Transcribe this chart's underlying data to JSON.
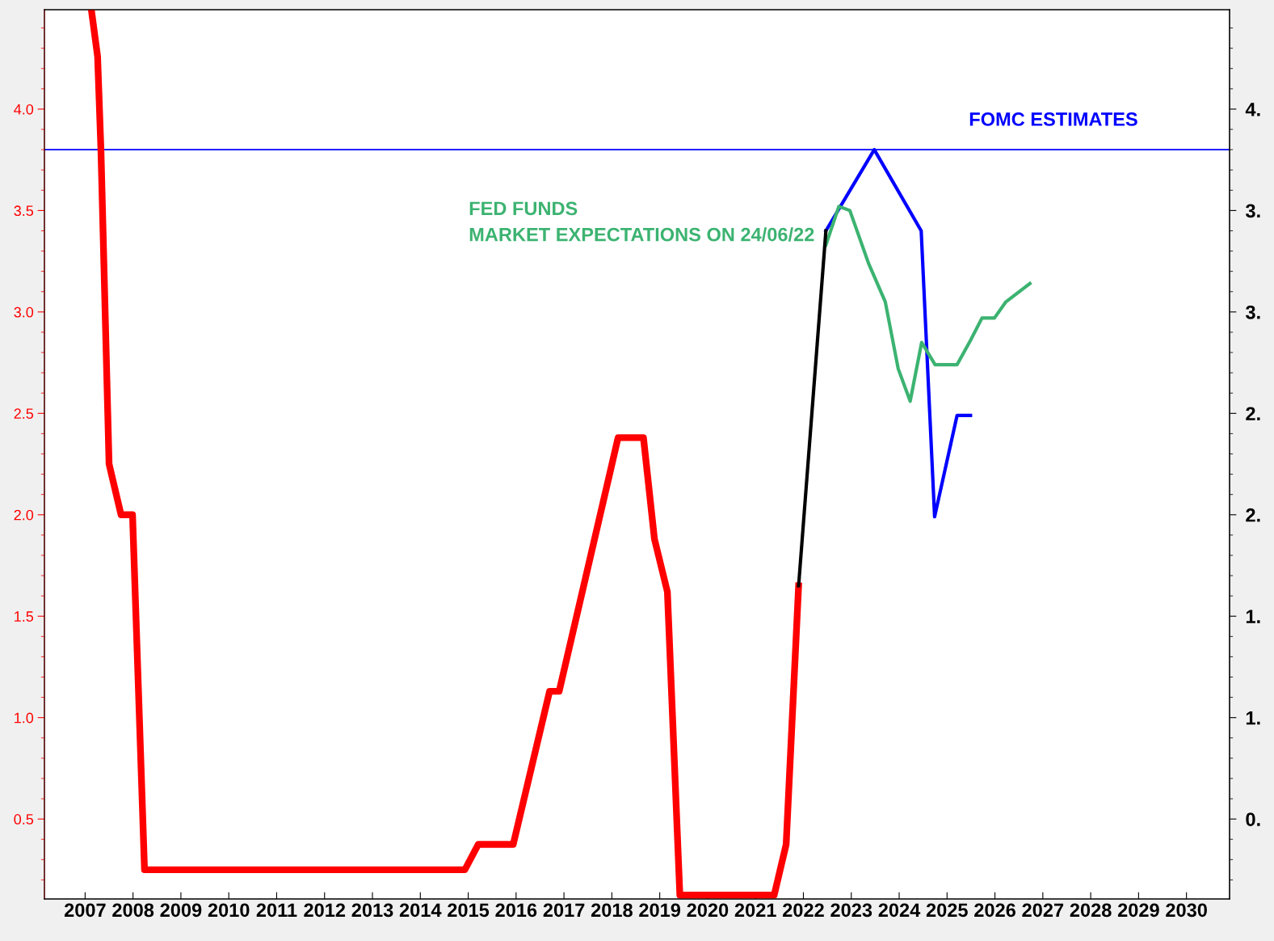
{
  "chart_data": {
    "type": "line",
    "grid": false,
    "legend": false,
    "marker": "none",
    "line_style": "solid",
    "xlim": [
      2006.65,
      2031.4
    ],
    "ylim": [
      0.106,
      4.49
    ],
    "y2lim": [
      0.106,
      4.49
    ],
    "xticks": [
      {
        "value": 2007.5,
        "label": "2007"
      },
      {
        "value": 2008.5,
        "label": "2008"
      },
      {
        "value": 2009.5,
        "label": "2009"
      },
      {
        "value": 2010.5,
        "label": "2010"
      },
      {
        "value": 2011.5,
        "label": "2011"
      },
      {
        "value": 2012.5,
        "label": "2012"
      },
      {
        "value": 2013.5,
        "label": "2013"
      },
      {
        "value": 2014.5,
        "label": "2014"
      },
      {
        "value": 2015.5,
        "label": "2015"
      },
      {
        "value": 2016.5,
        "label": "2016"
      },
      {
        "value": 2017.5,
        "label": "2017"
      },
      {
        "value": 2018.5,
        "label": "2018"
      },
      {
        "value": 2019.5,
        "label": "2019"
      },
      {
        "value": 2020.5,
        "label": "2020"
      },
      {
        "value": 2021.5,
        "label": "2021"
      },
      {
        "value": 2022.5,
        "label": "2022"
      },
      {
        "value": 2023.5,
        "label": "2023"
      },
      {
        "value": 2024.5,
        "label": "2024"
      },
      {
        "value": 2025.5,
        "label": "2025"
      },
      {
        "value": 2026.5,
        "label": "2026"
      },
      {
        "value": 2027.5,
        "label": "2027"
      },
      {
        "value": 2028.5,
        "label": "2028"
      },
      {
        "value": 2029.5,
        "label": "2029"
      },
      {
        "value": 2030.5,
        "label": "2030"
      }
    ],
    "yticks": [
      {
        "value": 0.5,
        "label": "0.5"
      },
      {
        "value": 1,
        "label": "1.0"
      },
      {
        "value": 1.5,
        "label": "1.5"
      },
      {
        "value": 2,
        "label": "2.0"
      },
      {
        "value": 2.5,
        "label": "2.5"
      },
      {
        "value": 3,
        "label": "3.0"
      },
      {
        "value": 3.5,
        "label": "3.5"
      },
      {
        "value": 4,
        "label": "4.0"
      }
    ],
    "y2ticks": [
      {
        "value": 0.5,
        "label": "0."
      },
      {
        "value": 1,
        "label": "1."
      },
      {
        "value": 1.5,
        "label": "1."
      },
      {
        "value": 2,
        "label": "2."
      },
      {
        "value": 2.5,
        "label": "2."
      },
      {
        "value": 3,
        "label": "3."
      },
      {
        "value": 3.5,
        "label": "3."
      },
      {
        "value": 4,
        "label": "4."
      }
    ],
    "ref_lines": [
      {
        "axis": "y",
        "value": 3.8,
        "color": "#0000ff",
        "line_style": "solid"
      }
    ],
    "series": [
      {
        "color": "#ff0000",
        "x": [
          2007.63,
          2007.76,
          2007.83,
          2008.0,
          2008.25,
          2008.49,
          2008.74,
          2015.43,
          2015.71,
          2016.44,
          2017.2,
          2017.4,
          2018.63,
          2019.16,
          2019.39,
          2019.66,
          2019.92,
          2021.89,
          2022.14,
          2022.4
        ],
        "values": [
          4.49,
          4.26,
          3.8,
          2.25,
          2.0,
          2.0,
          0.25,
          0.25,
          0.375,
          0.375,
          1.13,
          1.13,
          2.38,
          2.38,
          1.88,
          1.62,
          0.125,
          0.125,
          0.375,
          1.65
        ]
      },
      {
        "color": "#000000",
        "x": [
          2022.4,
          2022.97
        ],
        "values": [
          1.65,
          3.4
        ]
      },
      {
        "name": "FOMC ESTIMATES",
        "color": "#0000ff",
        "x": [
          2022.97,
          2023.98,
          2024.96,
          2025.24,
          2025.71,
          2025.99
        ],
        "values": [
          3.4,
          3.8,
          3.4,
          1.99,
          2.49,
          2.49
        ]
      },
      {
        "name": "FED FUNDS\nMARKET EXPECTATIONS ON 24/06/22",
        "color": "#3cb371",
        "x": [
          2022.97,
          2023.24,
          2023.47,
          2023.86,
          2024.21,
          2024.48,
          2024.73,
          2024.97,
          2025.25,
          2025.71,
          2025.99,
          2026.23,
          2026.49,
          2026.73,
          2027.23
        ],
        "values": [
          3.33,
          3.52,
          3.5,
          3.24,
          3.05,
          2.72,
          2.56,
          2.85,
          2.74,
          2.74,
          2.86,
          2.97,
          2.97,
          3.05,
          3.14
        ]
      }
    ]
  }
}
